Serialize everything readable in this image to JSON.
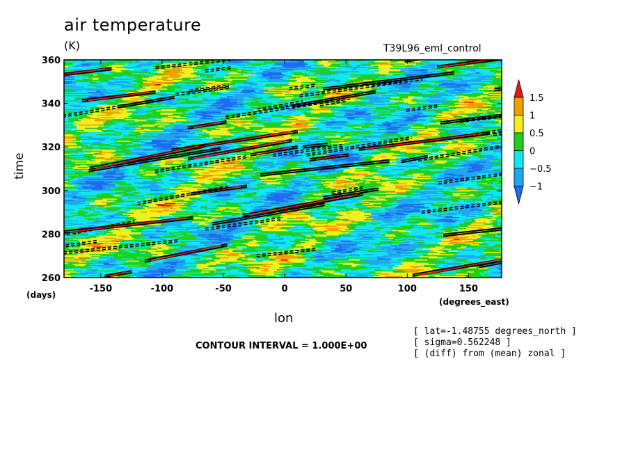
{
  "header": {
    "title": "air temperature",
    "units": "(K)",
    "run_label": "T39L96_eml_control"
  },
  "footer": {
    "contour_interval": "CONTOUR INTERVAL = 1.000E+00",
    "meta": [
      "[ lat=-1.48755 degrees_north ]",
      "[ sigma=0.562248 ]",
      "[ (diff) from (mean) zonal ]"
    ]
  },
  "chart_data": {
    "type": "heatmap",
    "title": "air temperature",
    "units": "(K)",
    "xlabel": "lon",
    "x_units": "(degrees_east)",
    "ylabel": "time",
    "y_units": "(days)",
    "xlim": [
      -180,
      177
    ],
    "ylim": [
      260,
      360
    ],
    "x_ticks": [
      -150,
      -100,
      -50,
      0,
      50,
      100,
      150
    ],
    "x_tick_labels": [
      "-150",
      "-100",
      "-50",
      "0",
      "50",
      "100",
      "150"
    ],
    "y_ticks": [
      260,
      280,
      300,
      320,
      340,
      360
    ],
    "colorbar": {
      "levels": [
        -1,
        -0.5,
        0,
        0.5,
        1,
        1.5
      ],
      "labels": [
        "-1",
        "-0.5",
        "0",
        "0.5",
        "1",
        "1.5"
      ],
      "colors": [
        "#1e6cf0",
        "#1ea8f0",
        "#10e6f0",
        "#20d020",
        "#f0f020",
        "#f0a000",
        "#e81818"
      ],
      "extend": "both"
    },
    "contour_interval": 1.0,
    "contour_style": "solid = positive, dashed = negative",
    "pattern": "eastward-propagating anomaly streaks"
  }
}
